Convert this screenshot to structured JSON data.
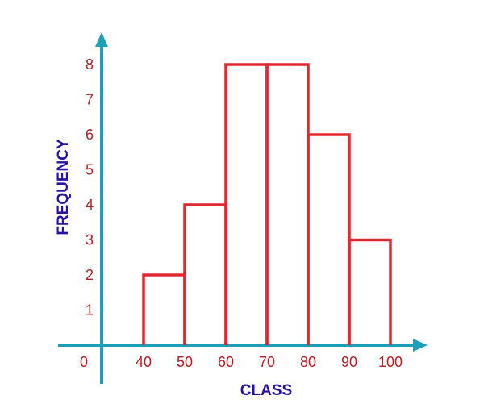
{
  "chart_data": {
    "type": "bar",
    "title": "",
    "xlabel": "CLASS",
    "ylabel": "FREQUENCY",
    "origin_label": "0",
    "bins": [
      {
        "from": 40,
        "to": 50,
        "value": 2
      },
      {
        "from": 50,
        "to": 60,
        "value": 4
      },
      {
        "from": 60,
        "to": 70,
        "value": 8
      },
      {
        "from": 70,
        "to": 80,
        "value": 8
      },
      {
        "from": 80,
        "to": 90,
        "value": 6
      },
      {
        "from": 90,
        "to": 100,
        "value": 3
      }
    ],
    "x_ticks": [
      "40",
      "50",
      "60",
      "70",
      "80",
      "90",
      "100"
    ],
    "y_ticks": [
      "1",
      "2",
      "3",
      "4",
      "5",
      "6",
      "7",
      "8"
    ],
    "ylim": [
      0,
      8
    ],
    "grid": false,
    "colors": {
      "axis": "#1e9fb8",
      "bars": "#e0282e",
      "tick_labels": "#b21f24",
      "axis_titles": "#2512a8"
    }
  }
}
